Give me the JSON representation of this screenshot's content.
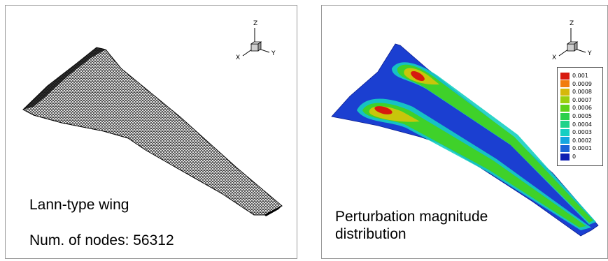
{
  "left_panel": {
    "title": "Lann-type wing",
    "nodes_label": "Num. of nodes: 56312"
  },
  "right_panel": {
    "title": "Perturbation magnitude distribution",
    "legend": [
      {
        "label": "0.001",
        "color": "#d7190f"
      },
      {
        "label": "0.0009",
        "color": "#f27b0c"
      },
      {
        "label": "0.0008",
        "color": "#d6b80b"
      },
      {
        "label": "0.0007",
        "color": "#9ccf0e"
      },
      {
        "label": "0.0006",
        "color": "#5fd11a"
      },
      {
        "label": "0.0005",
        "color": "#2bd04a"
      },
      {
        "label": "0.0004",
        "color": "#1fd38a"
      },
      {
        "label": "0.0003",
        "color": "#16cfc2"
      },
      {
        "label": "0.0002",
        "color": "#14a6e0"
      },
      {
        "label": "0.0001",
        "color": "#1b63d8"
      },
      {
        "label": "0",
        "color": "#0f1fb3"
      }
    ]
  },
  "axis_triad": {
    "z": "Z",
    "x": "X",
    "y": "Y"
  }
}
